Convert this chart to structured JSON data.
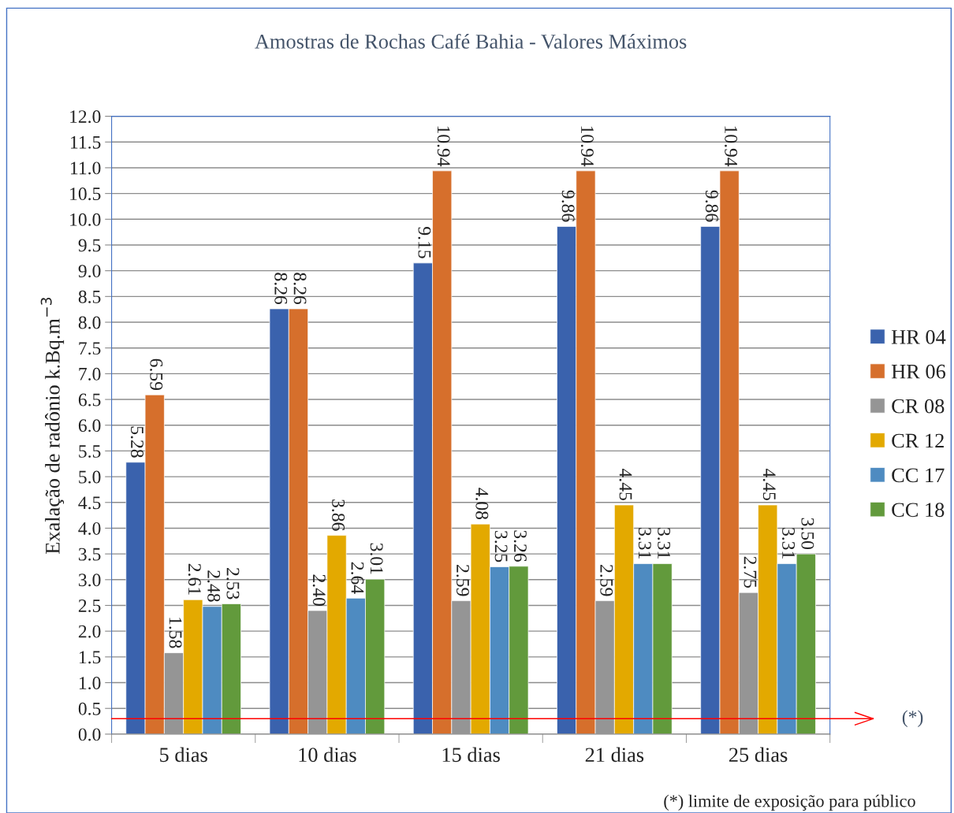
{
  "chart_data": {
    "type": "bar",
    "title": "Amostras de Rochas Café Bahia - Valores Máximos",
    "ylabel": "Exalação de radônio k.Bq.m$^{−3}$",
    "categories": [
      "5 dias",
      "10 dias",
      "15 dias",
      "21 dias",
      "25 dias"
    ],
    "series": [
      {
        "name": "HR 04",
        "color": "#3a62ad",
        "values": [
          5.28,
          8.26,
          9.15,
          9.86,
          9.86
        ],
        "value_labels": [
          "5.28",
          "8.26",
          "9.15",
          "9.86",
          "9.86"
        ]
      },
      {
        "name": "HR 06",
        "color": "#d66f2c",
        "values": [
          6.59,
          8.26,
          10.94,
          10.94,
          10.94
        ],
        "value_labels": [
          "6.59",
          "8.26",
          "10.94",
          "10.94",
          "10.94"
        ]
      },
      {
        "name": "CR 08",
        "color": "#959595",
        "values": [
          1.58,
          2.4,
          2.59,
          2.59,
          2.75
        ],
        "value_labels": [
          "1.58",
          "2.40",
          "2.59",
          "2.59",
          "2.75"
        ]
      },
      {
        "name": "CR 12",
        "color": "#e3a900",
        "values": [
          2.61,
          3.86,
          4.08,
          4.45,
          4.45
        ],
        "value_labels": [
          "2.61",
          "3.86",
          "4.08",
          "4.45",
          "4.45"
        ]
      },
      {
        "name": "CC 17",
        "color": "#4e8bc1",
        "values": [
          2.48,
          2.64,
          3.25,
          3.31,
          3.31
        ],
        "value_labels": [
          "2.48",
          "2.64",
          "3.25",
          "3.31",
          "3.31"
        ]
      },
      {
        "name": "CC 18",
        "color": "#629a3c",
        "values": [
          2.53,
          3.01,
          3.26,
          3.31,
          3.5
        ],
        "value_labels": [
          "2.53",
          "3.01",
          "3.26",
          "3.31",
          "3.50"
        ]
      }
    ],
    "ylim": [
      0,
      12
    ],
    "yticks": [
      {
        "value": 0,
        "label": "0.0"
      },
      {
        "value": 0.5,
        "label": "0.5"
      },
      {
        "value": 1,
        "label": "1.0"
      },
      {
        "value": 1.5,
        "label": "1.5"
      },
      {
        "value": 2,
        "label": "2.0"
      },
      {
        "value": 2.5,
        "label": "2.5"
      },
      {
        "value": 3,
        "label": "3.0"
      },
      {
        "value": 3.5,
        "label": "3.5"
      },
      {
        "value": 4,
        "label": "4.0"
      },
      {
        "value": 4.5,
        "label": "4.5"
      },
      {
        "value": 5,
        "label": "5.0"
      },
      {
        "value": 5.5,
        "label": "5.5"
      },
      {
        "value": 6,
        "label": "6.0"
      },
      {
        "value": 6.5,
        "label": "6.5"
      },
      {
        "value": 7,
        "label": "7.0"
      },
      {
        "value": 7.5,
        "label": "7.5"
      },
      {
        "value": 8,
        "label": "8.0"
      },
      {
        "value": 8.5,
        "label": "8.5"
      },
      {
        "value": 9,
        "label": "9.0"
      },
      {
        "value": 9.5,
        "label": "9.5"
      },
      {
        "value": 10,
        "label": "10.0"
      },
      {
        "value": 10.5,
        "label": "10.5"
      },
      {
        "value": 11,
        "label": "11.0"
      },
      {
        "value": 11.5,
        "label": "11.5"
      },
      {
        "value": 12,
        "label": "12.0"
      }
    ],
    "grid": "y",
    "legend": "right",
    "ref_lines": [
      {
        "axis": "y",
        "value": 0.3,
        "label": "(*)",
        "color": "#ff0000"
      }
    ],
    "annotations": [
      "(*) limite de exposição para público"
    ]
  }
}
